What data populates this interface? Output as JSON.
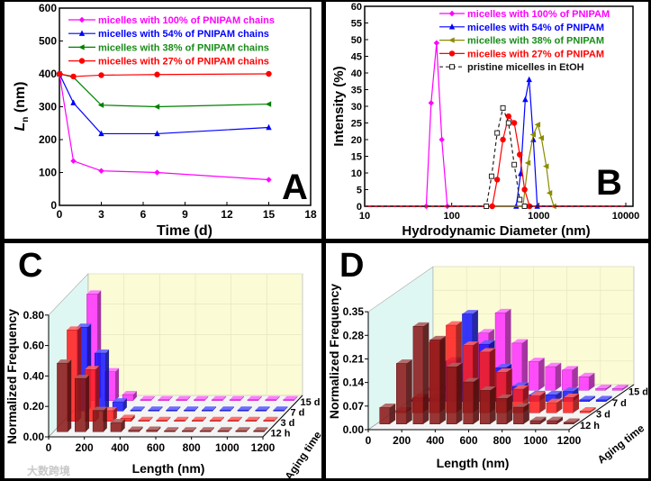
{
  "watermark": "大数跨境",
  "chart_data": [
    {
      "panel_label": "A",
      "type": "line",
      "xlabel": "Time (d)",
      "ylabel_main": "L",
      "ylabel_sub": "n",
      "ylabel_unit": " (nm)",
      "xlim": [
        0,
        18
      ],
      "ylim": [
        0,
        600
      ],
      "xticks": [
        0,
        3,
        6,
        9,
        12,
        15,
        18
      ],
      "yticks": [
        0,
        100,
        200,
        300,
        400,
        500,
        600
      ],
      "legend": "top-right",
      "series": [
        {
          "name": "micelles with 100% of PNIPAM chains",
          "color": "#ff00ff",
          "text_color": "#ff00ff",
          "marker": "diamond",
          "x": [
            0,
            1,
            3,
            7,
            15
          ],
          "y": [
            400,
            135,
            105,
            100,
            78
          ]
        },
        {
          "name": "micelles with 54% of PNIPAM chains",
          "color": "#0000ff",
          "text_color": "#0000ff",
          "marker": "triangle-up",
          "x": [
            0,
            1,
            3,
            7,
            15
          ],
          "y": [
            400,
            312,
            218,
            218,
            237
          ]
        },
        {
          "name": "micelles with 38% of PNIPAM chains",
          "color": "#008000",
          "text_color": "#1a8c1a",
          "marker": "triangle-left",
          "x": [
            0,
            1,
            3,
            7,
            15
          ],
          "y": [
            400,
            390,
            305,
            300,
            308
          ]
        },
        {
          "name": "micelles with 27% of PNIPAM chains",
          "color": "#ff0000",
          "text_color": "#ff0000",
          "marker": "circle",
          "x": [
            0,
            1,
            3,
            7,
            15
          ],
          "y": [
            400,
            392,
            396,
            398,
            400
          ]
        }
      ]
    },
    {
      "panel_label": "B",
      "type": "line",
      "xscale": "log",
      "xlabel": "Hydrodynamic Diameter (nm)",
      "ylabel": "Intensity (%)",
      "xlim": [
        10,
        10000
      ],
      "ylim": [
        0,
        60
      ],
      "xticks": [
        10,
        100,
        1000,
        10000
      ],
      "yticks": [
        0,
        5,
        10,
        15,
        20,
        25,
        30,
        35,
        40,
        45,
        50,
        55,
        60
      ],
      "legend": "top-right",
      "series": [
        {
          "name": "micelles with 100% of PNIPAM",
          "color": "#ff00ff",
          "text_color": "#ff00ff",
          "marker": "diamond",
          "dash": false,
          "x": [
            10,
            51,
            58,
            67,
            77,
            89,
            10000
          ],
          "y": [
            0,
            0,
            31,
            49,
            20,
            0,
            0
          ]
        },
        {
          "name": "micelles with 54% of PNIPAM",
          "color": "#0000ff",
          "text_color": "#0000ff",
          "marker": "triangle-up",
          "dash": false,
          "x": [
            10,
            551,
            620,
            700,
            776,
            867,
            962,
            10000
          ],
          "y": [
            0,
            0,
            9.8,
            32,
            38,
            20,
            0,
            0
          ]
        },
        {
          "name": "micelles with 38% of PNIPAM",
          "color": "#8b8b00",
          "text_color": "#1a8c1a",
          "marker": "triangle-left",
          "dash": false,
          "x": [
            10,
            659,
            754,
            867,
            977,
            1073,
            1222,
            1338,
            1490,
            10000
          ],
          "y": [
            0,
            0,
            13,
            21.5,
            24.5,
            20.5,
            12,
            4,
            0,
            0
          ]
        },
        {
          "name": "micelles with 27% of PNIPAM",
          "color": "#ff0000",
          "text_color": "#ff0000",
          "marker": "circle",
          "dash": false,
          "x": [
            10,
            292,
            333,
            388,
            450,
            523,
            605,
            688,
            785,
            10000
          ],
          "y": [
            0,
            0,
            8,
            20,
            27,
            25,
            15.5,
            5,
            0,
            0
          ]
        },
        {
          "name": "pristine micelles in EtOH",
          "color": "#222222",
          "text_color": "#111111",
          "marker": "square-open",
          "dash": true,
          "x": [
            10,
            250,
            287,
            333,
            388,
            450,
            523,
            605,
            688,
            10000
          ],
          "y": [
            0,
            0,
            9,
            22,
            29.5,
            25,
            12.5,
            2,
            0,
            0
          ]
        }
      ]
    },
    {
      "panel_label": "C",
      "type": "bar3d",
      "xlabel": "Length (nm)",
      "ylabel": "Normalized Frequency",
      "zlabel": "Aging time",
      "xlim": [
        0,
        1200
      ],
      "ylim": [
        0,
        0.8
      ],
      "xticks": [
        0,
        200,
        400,
        600,
        800,
        1000,
        1200
      ],
      "yticks": [
        "0.00",
        "0.20",
        "0.40",
        "0.60",
        "0.80"
      ],
      "bin_centers": [
        50,
        150,
        250,
        350,
        450,
        550,
        650,
        750,
        850,
        950,
        1050,
        1150
      ],
      "rows": [
        {
          "name": "12 h",
          "color": "#8b1a1a",
          "values": [
            0.45,
            0.35,
            0.14,
            0.06,
            0.01,
            0.01,
            0.005,
            0.005,
            0.005,
            0.005,
            0.005,
            0.005
          ]
        },
        {
          "name": "3 d",
          "color": "#ff2020",
          "values": [
            0.6,
            0.34,
            0.07,
            0.02,
            0.005,
            0.005,
            0.005,
            0.005,
            0.005,
            0.005,
            0.005,
            0.005
          ]
        },
        {
          "name": "7 d",
          "color": "#1a1aff",
          "values": [
            0.55,
            0.38,
            0.06,
            0.005,
            0.005,
            0.005,
            0.005,
            0.005,
            0.005,
            0.005,
            0.005,
            0.005
          ]
        },
        {
          "name": "15 d",
          "color": "#ff33ff",
          "values": [
            0.7,
            0.19,
            0.04,
            0.005,
            0.005,
            0.005,
            0.005,
            0.005,
            0.005,
            0.005,
            0.005,
            0.005
          ]
        }
      ]
    },
    {
      "panel_label": "D",
      "type": "bar3d",
      "xlabel": "Length (nm)",
      "ylabel": "Normalized Frequency",
      "zlabel": "Aging time",
      "xlim": [
        0,
        1200
      ],
      "ylim": [
        0,
        0.35
      ],
      "xticks": [
        0,
        200,
        400,
        600,
        800,
        1000,
        1200
      ],
      "yticks": [
        "0.00",
        "0.07",
        "0.14",
        "0.21",
        "0.28",
        "0.35"
      ],
      "bin_centers": [
        50,
        150,
        250,
        350,
        450,
        550,
        650,
        750,
        850,
        950,
        1050,
        1150
      ],
      "rows": [
        {
          "name": "12 h",
          "color": "#8b1a1a",
          "values": [
            0.049,
            0.18,
            0.29,
            0.25,
            0.17,
            0.125,
            0.1,
            0.076,
            0.05,
            0.01,
            0.01,
            0.005
          ]
        },
        {
          "name": "3 d",
          "color": "#ff2020",
          "values": [
            0.005,
            0.045,
            0.21,
            0.26,
            0.2,
            0.18,
            0.12,
            0.07,
            0.05,
            0.03,
            0.045,
            0.005
          ]
        },
        {
          "name": "7 d",
          "color": "#1a1aff",
          "values": [
            0.005,
            0.01,
            0.12,
            0.26,
            0.17,
            0.1,
            0.045,
            0.02,
            0.02,
            0.03,
            0.005,
            0.005
          ]
        },
        {
          "name": "15 d",
          "color": "#ff33ff",
          "values": [
            0.005,
            0.01,
            0.05,
            0.17,
            0.23,
            0.14,
            0.085,
            0.07,
            0.06,
            0.04,
            0.005,
            0.005
          ]
        }
      ]
    }
  ]
}
